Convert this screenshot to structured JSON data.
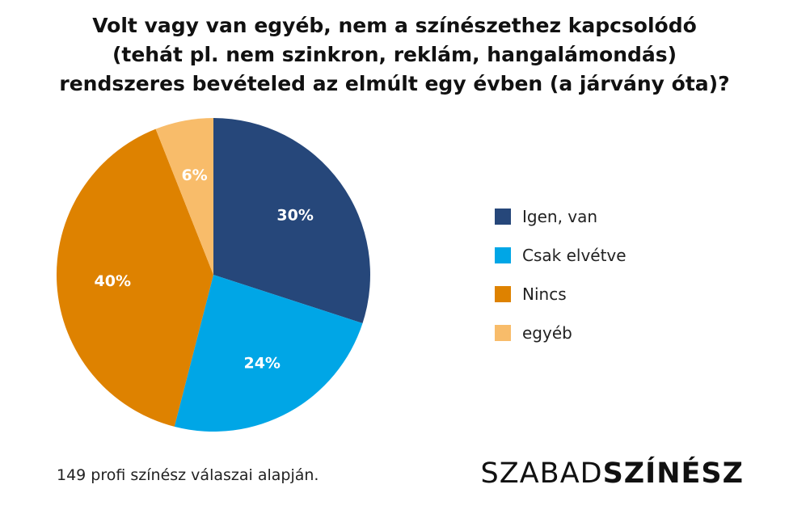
{
  "title_lines": [
    "Volt vagy van egyéb, nem a színészethez kapcsolódó",
    "(tehát pl. nem szinkron, reklám, hangalámondás)",
    "rendszeres bevételed az elmúlt egy évben (a járvány óta)?"
  ],
  "chart_data": {
    "type": "pie",
    "title": "Volt vagy van egyéb, nem a színészethez kapcsolódó (tehát pl. nem szinkron, reklám, hangalámondás) rendszeres bevételed az elmúlt egy évben (a járvány óta)?",
    "start_angle_deg": 0,
    "direction": "clockwise",
    "legend_position": "right",
    "slices": [
      {
        "label": "Igen, van",
        "value": 30,
        "display": "30%",
        "color": "#26477a"
      },
      {
        "label": "Csak elvétve",
        "value": 24,
        "display": "24%",
        "color": "#00a6e6"
      },
      {
        "label": "Nincs",
        "value": 40,
        "display": "40%",
        "color": "#de8200"
      },
      {
        "label": "egyéb",
        "value": 6,
        "display": "6%",
        "color": "#f8bc6a"
      }
    ]
  },
  "footnote": "149 profi színész válaszai alapján.",
  "brand": {
    "part1": "SZABAD",
    "part2": "SZÍNÉSZ"
  }
}
